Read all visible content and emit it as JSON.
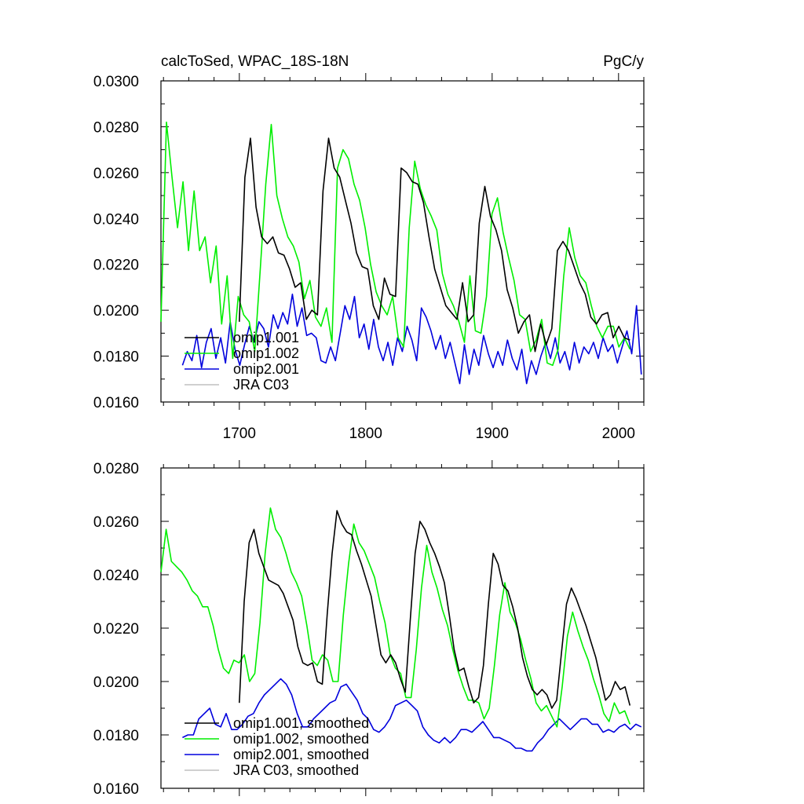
{
  "colors": {
    "omip1_001": "#000000",
    "omip1_002": "#00ee00",
    "omip2_001": "#0000dd",
    "jra": "#c0c0c0",
    "axis": "#000000"
  },
  "chart_data": [
    {
      "type": "line",
      "title": "calcToSed, WPAC_18S-18N",
      "units": "PgC/y",
      "xlim": [
        1638,
        2020
      ],
      "ylim": [
        0.016,
        0.03
      ],
      "x_ticks": [
        1700,
        1800,
        1900,
        2000
      ],
      "x_tick_labels": [
        "1700",
        "1800",
        "1900",
        "2000"
      ],
      "y_ticks": [
        0.016,
        0.018,
        0.02,
        0.022,
        0.024,
        0.026,
        0.028,
        0.03
      ],
      "y_tick_labels": [
        "0.0160",
        "0.0180",
        "0.0200",
        "0.0220",
        "0.0240",
        "0.0260",
        "0.0280",
        "0.0300"
      ],
      "legend": [
        "omip1.001",
        "omip1.002",
        "omip2.001",
        "JRA C03"
      ],
      "series": [
        {
          "name": "omip1.001",
          "color_key": "omip1_001",
          "x_start": 1700,
          "x_end": 2009,
          "values": [
            0.0195,
            0.0258,
            0.0275,
            0.0245,
            0.0232,
            0.0229,
            0.0232,
            0.0225,
            0.0224,
            0.0218,
            0.021,
            0.0212,
            0.0196,
            0.02,
            0.0198,
            0.0252,
            0.0275,
            0.0262,
            0.0258,
            0.0248,
            0.0238,
            0.0225,
            0.0219,
            0.0218,
            0.0202,
            0.0196,
            0.0214,
            0.0207,
            0.0206,
            0.0262,
            0.026,
            0.0256,
            0.0255,
            0.0247,
            0.0232,
            0.0218,
            0.021,
            0.0202,
            0.0199,
            0.0196,
            0.0212,
            0.0195,
            0.0198,
            0.0238,
            0.0254,
            0.0241,
            0.0235,
            0.0226,
            0.0209,
            0.0201,
            0.019,
            0.0195,
            0.0198,
            0.0182,
            0.0194,
            0.0185,
            0.0192,
            0.0226,
            0.023,
            0.0226,
            0.0219,
            0.0212,
            0.0207,
            0.0197,
            0.0194,
            0.0198,
            0.0199,
            0.0188,
            0.0193,
            0.0188,
            0.0187
          ],
          "smoothed": [
            0.0192,
            0.023,
            0.0252,
            0.0257,
            0.0248,
            0.0243,
            0.0238,
            0.0237,
            0.0236,
            0.0233,
            0.0228,
            0.0223,
            0.0213,
            0.0207,
            0.0206,
            0.0207,
            0.02,
            0.0199,
            0.0225,
            0.0248,
            0.0264,
            0.0259,
            0.0256,
            0.0255,
            0.0249,
            0.0244,
            0.0238,
            0.0232,
            0.0221,
            0.021,
            0.0207,
            0.021,
            0.0207,
            0.0201,
            0.0196,
            0.0223,
            0.0248,
            0.026,
            0.0257,
            0.0252,
            0.0248,
            0.0243,
            0.0237,
            0.0225,
            0.0212,
            0.0204,
            0.0205,
            0.0198,
            0.0192,
            0.0194,
            0.0206,
            0.0229,
            0.0248,
            0.0244,
            0.0236,
            0.0234,
            0.0228,
            0.022,
            0.0209,
            0.0202,
            0.0197,
            0.0195,
            0.0197,
            0.0195,
            0.019,
            0.0193,
            0.0211,
            0.0229,
            0.0235,
            0.0231,
            0.0226,
            0.0221,
            0.0215,
            0.0209,
            0.0201,
            0.0193,
            0.0195,
            0.02,
            0.0197,
            0.0198,
            0.0191
          ]
        },
        {
          "name": "omip1.002",
          "color_key": "omip1_002",
          "x_start": 1638,
          "x_end": 2009,
          "values": [
            0.0195,
            0.0282,
            0.0258,
            0.0236,
            0.0256,
            0.0226,
            0.0252,
            0.0226,
            0.0232,
            0.0212,
            0.0228,
            0.0194,
            0.0215,
            0.0179,
            0.0206,
            0.0198,
            0.0195,
            0.0182,
            0.0218,
            0.0255,
            0.0281,
            0.025,
            0.024,
            0.0232,
            0.0228,
            0.0221,
            0.0205,
            0.0213,
            0.0197,
            0.0193,
            0.0201,
            0.0186,
            0.0262,
            0.027,
            0.0266,
            0.0255,
            0.0248,
            0.0236,
            0.022,
            0.0208,
            0.0202,
            0.0198,
            0.0206,
            0.0188,
            0.0184,
            0.0236,
            0.0265,
            0.0253,
            0.0246,
            0.0241,
            0.0235,
            0.0216,
            0.0207,
            0.0202,
            0.0195,
            0.0186,
            0.0215,
            0.0191,
            0.019,
            0.0206,
            0.0242,
            0.0249,
            0.0234,
            0.0223,
            0.0213,
            0.0198,
            0.0196,
            0.0182,
            0.0187,
            0.0196,
            0.0177,
            0.0176,
            0.0183,
            0.0215,
            0.0236,
            0.0223,
            0.0215,
            0.0212,
            0.0202,
            0.0193,
            0.0188,
            0.0193,
            0.0193,
            0.0184,
            0.0188,
            0.0183
          ],
          "smoothed": [
            0.0241,
            0.0257,
            0.0245,
            0.0243,
            0.0241,
            0.0238,
            0.0234,
            0.0232,
            0.0228,
            0.0228,
            0.0221,
            0.0212,
            0.0205,
            0.0203,
            0.0208,
            0.0207,
            0.021,
            0.02,
            0.0203,
            0.0222,
            0.0248,
            0.0265,
            0.0257,
            0.0254,
            0.0248,
            0.0241,
            0.0237,
            0.0232,
            0.0221,
            0.0208,
            0.0206,
            0.021,
            0.0208,
            0.02,
            0.02,
            0.0225,
            0.0244,
            0.0259,
            0.0252,
            0.0249,
            0.0244,
            0.0239,
            0.023,
            0.0222,
            0.021,
            0.0205,
            0.0203,
            0.0194,
            0.0194,
            0.0212,
            0.0235,
            0.0251,
            0.0241,
            0.0235,
            0.0227,
            0.0221,
            0.0212,
            0.0204,
            0.0198,
            0.0193,
            0.0193,
            0.0192,
            0.0186,
            0.019,
            0.0206,
            0.0225,
            0.0237,
            0.0226,
            0.0222,
            0.0216,
            0.0208,
            0.0201,
            0.0192,
            0.0189,
            0.0191,
            0.0187,
            0.0183,
            0.0198,
            0.0217,
            0.0226,
            0.0219,
            0.0213,
            0.0208,
            0.0201,
            0.0195,
            0.0188,
            0.0185,
            0.0192,
            0.0188,
            0.0189,
            0.0184
          ]
        },
        {
          "name": "omip2.001",
          "color_key": "omip2_001",
          "x_start": 1655,
          "x_end": 2018,
          "values": [
            0.0176,
            0.0182,
            0.0178,
            0.0189,
            0.0175,
            0.0186,
            0.0192,
            0.0179,
            0.0188,
            0.0177,
            0.0195,
            0.0183,
            0.0176,
            0.0185,
            0.0193,
            0.0186,
            0.0195,
            0.0192,
            0.0184,
            0.0198,
            0.0192,
            0.0199,
            0.0194,
            0.0207,
            0.0193,
            0.0201,
            0.0189,
            0.019,
            0.0188,
            0.0178,
            0.0177,
            0.0184,
            0.0178,
            0.019,
            0.0202,
            0.0196,
            0.0206,
            0.0188,
            0.0194,
            0.0183,
            0.0196,
            0.0184,
            0.0178,
            0.0186,
            0.0176,
            0.0188,
            0.0182,
            0.0193,
            0.0187,
            0.0178,
            0.0201,
            0.0197,
            0.0191,
            0.0183,
            0.0189,
            0.0179,
            0.0186,
            0.0177,
            0.0168,
            0.0185,
            0.0172,
            0.0183,
            0.0176,
            0.0189,
            0.0181,
            0.0175,
            0.0182,
            0.0176,
            0.0187,
            0.0179,
            0.0174,
            0.0183,
            0.0168,
            0.0178,
            0.0172,
            0.018,
            0.0186,
            0.0179,
            0.0188,
            0.0177,
            0.0182,
            0.0174,
            0.0186,
            0.0177,
            0.0184,
            0.0181,
            0.0186,
            0.0179,
            0.0188,
            0.0182,
            0.0185,
            0.0177,
            0.0184,
            0.0191,
            0.0181,
            0.0202,
            0.0172
          ],
          "smoothed": [
            0.0179,
            0.018,
            0.018,
            0.0186,
            0.0188,
            0.019,
            0.0184,
            0.0183,
            0.0188,
            0.0182,
            0.0182,
            0.0184,
            0.0187,
            0.0188,
            0.0192,
            0.0195,
            0.0197,
            0.0199,
            0.0201,
            0.0199,
            0.0195,
            0.0188,
            0.0183,
            0.0183,
            0.0186,
            0.0188,
            0.019,
            0.0192,
            0.0193,
            0.0198,
            0.0199,
            0.0196,
            0.0193,
            0.0188,
            0.0186,
            0.0182,
            0.0181,
            0.0183,
            0.0186,
            0.0191,
            0.0192,
            0.0193,
            0.0191,
            0.0189,
            0.0183,
            0.018,
            0.0178,
            0.0177,
            0.0179,
            0.0177,
            0.0179,
            0.0182,
            0.0182,
            0.0181,
            0.0183,
            0.0185,
            0.0182,
            0.0179,
            0.0179,
            0.0178,
            0.0177,
            0.0175,
            0.0175,
            0.0174,
            0.0174,
            0.0177,
            0.0179,
            0.0182,
            0.0184,
            0.0186,
            0.0184,
            0.0182,
            0.0184,
            0.0186,
            0.0186,
            0.0184,
            0.0184,
            0.0181,
            0.0182,
            0.0181,
            0.0183,
            0.0184,
            0.0182,
            0.0184,
            0.0183
          ]
        },
        {
          "name": "JRA C03",
          "color_key": "jra",
          "values": []
        }
      ]
    },
    {
      "type": "line",
      "title": "",
      "xlim": [
        1638,
        2020
      ],
      "ylim": [
        0.016,
        0.028
      ],
      "x_ticks": [
        1700,
        1800,
        1900,
        2000
      ],
      "y_ticks": [
        0.016,
        0.018,
        0.02,
        0.022,
        0.024,
        0.026,
        0.028
      ],
      "y_tick_labels": [
        "0.0160",
        "0.0180",
        "0.0200",
        "0.0220",
        "0.0240",
        "0.0260",
        "0.0280"
      ],
      "legend": [
        "omip1.001, smoothed",
        "omip1.002, smoothed",
        "omip2.001, smoothed",
        "JRA C03, smoothed"
      ]
    }
  ]
}
